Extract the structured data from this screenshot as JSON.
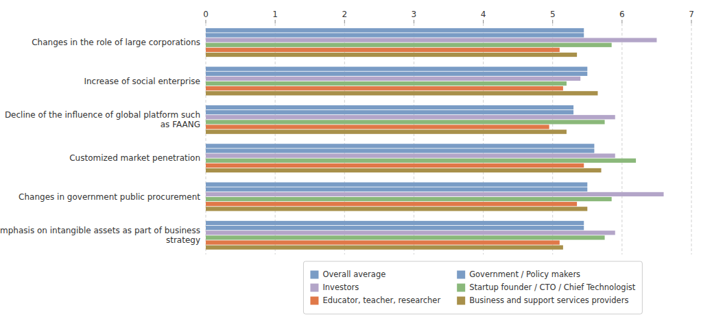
{
  "chart_data": {
    "type": "bar",
    "orientation": "horizontal",
    "categories": [
      "Changes in the role of large corporations",
      "Increase of social enterprise",
      "Decline of the influence of global platform such\nas FAANG",
      "Customized market penetration",
      "Changes in government public procurement",
      "Emphasis on intangible assets as part of business\nstrategy"
    ],
    "series": [
      {
        "name": "Overall average",
        "color": "#7a9cc5",
        "values": [
          5.45,
          5.5,
          5.3,
          5.6,
          5.5,
          5.45
        ]
      },
      {
        "name": "Government / Policy makers",
        "color": "#7a9cc5",
        "values": [
          5.45,
          5.5,
          5.3,
          5.6,
          5.5,
          5.45
        ]
      },
      {
        "name": "Investors",
        "color": "#b3a5c8",
        "values": [
          6.5,
          5.4,
          5.9,
          5.9,
          6.6,
          5.9
        ]
      },
      {
        "name": "Startup founder / CTO / Chief Technologist",
        "color": "#8ab87a",
        "values": [
          5.85,
          5.2,
          5.75,
          6.2,
          5.85,
          5.75
        ]
      },
      {
        "name": "Educator, teacher, researcher",
        "color": "#e07848",
        "values": [
          5.1,
          5.15,
          4.95,
          5.45,
          5.35,
          5.1
        ]
      },
      {
        "name": "Business and support services providers",
        "color": "#a8904a",
        "values": [
          5.35,
          5.65,
          5.2,
          5.7,
          5.5,
          5.15
        ]
      }
    ],
    "xlim": [
      0,
      7
    ],
    "xticks": [
      0,
      1,
      2,
      3,
      4,
      5,
      6,
      7
    ],
    "grid": true,
    "legend": "bottom"
  }
}
